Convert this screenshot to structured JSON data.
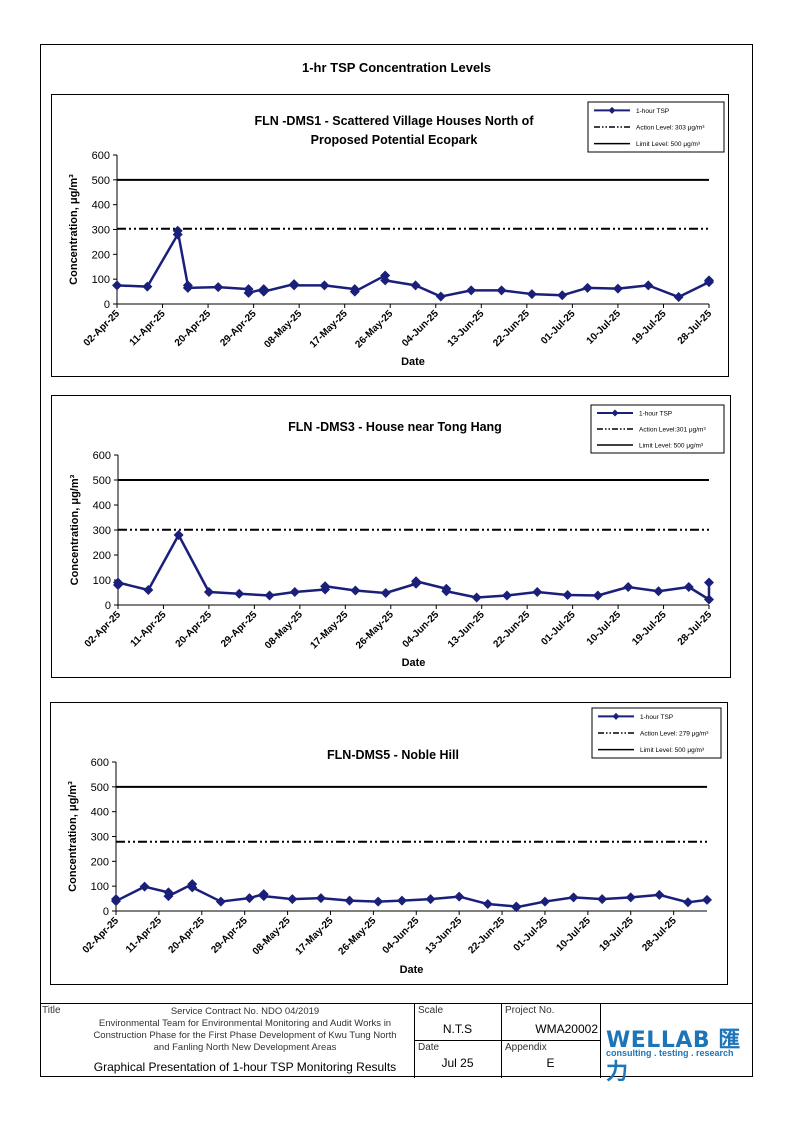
{
  "page": {
    "title": "1-hr TSP Concentration Levels"
  },
  "chart_data": [
    {
      "type": "line",
      "title": "FLN -DMS1 - Scattered Village Houses North of Proposed Potential Ecopark",
      "title_lines": [
        "FLN -DMS1 - Scattered Village Houses North of",
        "Proposed Potential Ecopark"
      ],
      "xlabel": "Date",
      "ylabel": "Concentration, μg/m³",
      "ylim": [
        0,
        600
      ],
      "yticks": [
        0,
        100,
        200,
        300,
        400,
        500,
        600
      ],
      "xlim": [
        "2025-04-02",
        "2025-07-28"
      ],
      "xtick_labels": [
        "02-Apr-25",
        "11-Apr-25",
        "20-Apr-25",
        "29-Apr-25",
        "08-May-25",
        "17-May-25",
        "26-May-25",
        "04-Jun-25",
        "13-Jun-25",
        "22-Jun-25",
        "01-Jul-25",
        "10-Jul-25",
        "19-Jul-25",
        "28-Jul-25"
      ],
      "legend_placement": "top-right",
      "grid": false,
      "series": [
        {
          "name": "1-hour TSP",
          "style": "line-marker",
          "x": [
            "2025-04-02",
            "2025-04-08",
            "2025-04-14",
            "2025-04-14",
            "2025-04-16",
            "2025-04-16",
            "2025-04-22",
            "2025-04-28",
            "2025-04-28",
            "2025-05-01",
            "2025-05-01",
            "2025-05-07",
            "2025-05-07",
            "2025-05-13",
            "2025-05-19",
            "2025-05-19",
            "2025-05-25",
            "2025-05-25",
            "2025-05-31",
            "2025-06-05",
            "2025-06-11",
            "2025-06-17",
            "2025-06-23",
            "2025-06-29",
            "2025-07-04",
            "2025-07-10",
            "2025-07-16",
            "2025-07-22",
            "2025-07-28",
            "2025-07-28"
          ],
          "values": [
            75,
            70,
            280,
            295,
            75,
            65,
            68,
            60,
            45,
            60,
            50,
            80,
            75,
            75,
            60,
            50,
            115,
            95,
            75,
            30,
            55,
            55,
            40,
            35,
            65,
            62,
            75,
            28,
            88,
            95
          ]
        },
        {
          "name": "Action Level: 303 μg/m³",
          "style": "dash-dot-dot",
          "constant": 303
        },
        {
          "name": "Limit Level: 500 μg/m³",
          "style": "solid",
          "constant": 500
        }
      ]
    },
    {
      "type": "line",
      "title": "FLN -DMS3 - House near Tong Hang",
      "title_lines": [
        "FLN -DMS3 - House near Tong Hang"
      ],
      "xlabel": "Date",
      "ylabel": "Concentration, μg/m³",
      "ylim": [
        0,
        600
      ],
      "yticks": [
        0,
        100,
        200,
        300,
        400,
        500,
        600
      ],
      "xlim": [
        "2025-04-02",
        "2025-07-28"
      ],
      "xtick_labels": [
        "02-Apr-25",
        "11-Apr-25",
        "20-Apr-25",
        "29-Apr-25",
        "08-May-25",
        "17-May-25",
        "26-May-25",
        "04-Jun-25",
        "13-Jun-25",
        "22-Jun-25",
        "01-Jul-25",
        "10-Jul-25",
        "19-Jul-25",
        "28-Jul-25"
      ],
      "legend_placement": "top-right",
      "grid": false,
      "series": [
        {
          "name": "1-hour TSP",
          "style": "line-marker",
          "x": [
            "2025-04-02",
            "2025-04-02",
            "2025-04-08",
            "2025-04-14",
            "2025-04-20",
            "2025-04-26",
            "2025-05-02",
            "2025-05-07",
            "2025-05-13",
            "2025-05-13",
            "2025-05-19",
            "2025-05-25",
            "2025-05-31",
            "2025-05-31",
            "2025-06-06",
            "2025-06-06",
            "2025-06-12",
            "2025-06-18",
            "2025-06-24",
            "2025-06-30",
            "2025-07-06",
            "2025-07-12",
            "2025-07-18",
            "2025-07-24",
            "2025-07-28",
            "2025-07-28"
          ],
          "values": [
            80,
            90,
            60,
            280,
            52,
            45,
            38,
            52,
            62,
            75,
            58,
            48,
            85,
            95,
            65,
            55,
            30,
            38,
            52,
            40,
            38,
            72,
            55,
            72,
            22,
            90
          ]
        },
        {
          "name": "Action Level:301 μg/m³",
          "style": "dash-dot-dot",
          "constant": 301
        },
        {
          "name": "Limit Level: 500 μg/m³",
          "style": "solid",
          "constant": 500
        }
      ]
    },
    {
      "type": "line",
      "title": "FLN-DMS5 - Noble Hill",
      "title_lines": [
        "FLN-DMS5 - Noble Hill"
      ],
      "xlabel": "Date",
      "ylabel": "Concentration, μg/m³",
      "ylim": [
        0,
        600
      ],
      "yticks": [
        0,
        100,
        200,
        300,
        400,
        500,
        600
      ],
      "xlim": [
        "2025-04-02",
        "2025-08-04"
      ],
      "xtick_labels": [
        "02-Apr-25",
        "11-Apr-25",
        "20-Apr-25",
        "29-Apr-25",
        "08-May-25",
        "17-May-25",
        "26-May-25",
        "04-Jun-25",
        "13-Jun-25",
        "22-Jun-25",
        "01-Jul-25",
        "10-Jul-25",
        "19-Jul-25",
        "28-Jul-25"
      ],
      "legend_placement": "top-right",
      "grid": false,
      "series": [
        {
          "name": "1-hour TSP",
          "style": "line-marker",
          "x": [
            "2025-04-02",
            "2025-04-02",
            "2025-04-08",
            "2025-04-13",
            "2025-04-13",
            "2025-04-18",
            "2025-04-18",
            "2025-04-24",
            "2025-04-30",
            "2025-05-03",
            "2025-05-03",
            "2025-05-09",
            "2025-05-15",
            "2025-05-21",
            "2025-05-27",
            "2025-06-01",
            "2025-06-07",
            "2025-06-13",
            "2025-06-19",
            "2025-06-25",
            "2025-06-25",
            "2025-07-01",
            "2025-07-07",
            "2025-07-13",
            "2025-07-19",
            "2025-07-25",
            "2025-07-31",
            "2025-08-04"
          ],
          "values": [
            48,
            40,
            98,
            75,
            60,
            108,
            95,
            38,
            52,
            68,
            60,
            48,
            52,
            42,
            38,
            42,
            48,
            58,
            28,
            18,
            15,
            38,
            55,
            48,
            55,
            65,
            35,
            45
          ]
        },
        {
          "name": "Action Level: 279 μg/m³",
          "style": "dash-dot-dot",
          "constant": 279
        },
        {
          "name": "Limit Level: 500 μg/m³",
          "style": "solid",
          "constant": 500
        }
      ]
    }
  ],
  "footer": {
    "title_label": "Title",
    "scale_label": "Scale",
    "scale_value": "N.T.S",
    "project_label": "Project No.",
    "project_value": "WMA20002",
    "date_label": "Date",
    "date_value": "Jul 25",
    "appendix_label": "Appendix",
    "appendix_value": "E",
    "contract_lines": [
      "Service Contract No. NDO 04/2019",
      "Environmental Team for Environmental Monitoring and Audit Works in",
      "Construction Phase for the First Phase Development of Kwu Tung North",
      "and Fanling North New Development Areas"
    ],
    "drawing_title": "Graphical Presentation of 1-hour TSP Monitoring Results",
    "logo_text": "WELLAB 匯力",
    "logo_tagline": "consulting . testing . research",
    "logo_color": "#1d75b9"
  },
  "colors": {
    "series": "#1a1f7a",
    "lines": "#000000"
  }
}
